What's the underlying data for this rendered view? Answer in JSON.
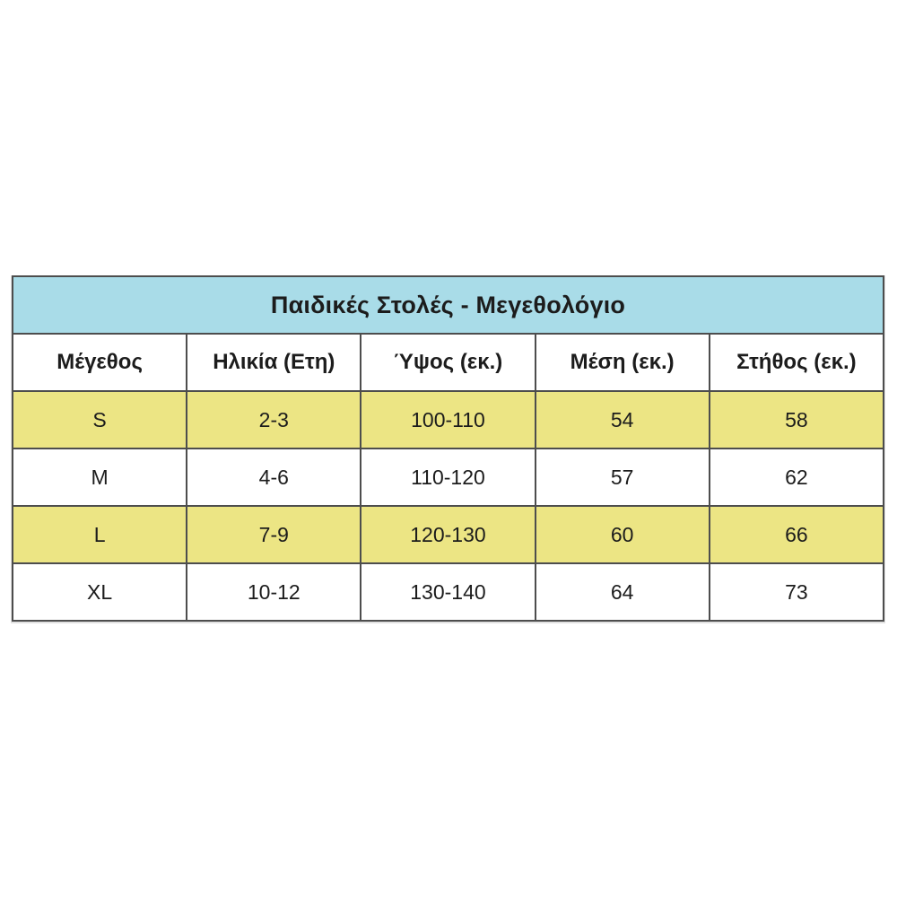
{
  "table": {
    "title": "Παιδικές Στολές - Μεγεθολόγιο",
    "columns": [
      "Μέγεθος",
      "Ηλικία (Ετη)",
      "Ύψος (εκ.)",
      "Μέση (εκ.)",
      "Στήθος (εκ.)"
    ],
    "rows": [
      {
        "size": "S",
        "age": "2-3",
        "height": "100-110",
        "waist": "54",
        "chest": "58"
      },
      {
        "size": "M",
        "age": "4-6",
        "height": "110-120",
        "waist": "57",
        "chest": "62"
      },
      {
        "size": "L",
        "age": "7-9",
        "height": "120-130",
        "waist": "60",
        "chest": "66"
      },
      {
        "size": "XL",
        "age": "10-12",
        "height": "130-140",
        "waist": "64",
        "chest": "73"
      }
    ],
    "colors": {
      "title_bg": "#a9dce8",
      "highlight_row_bg": "#ece584",
      "border": "#4d4d4d",
      "text": "#1c1c1c",
      "page_bg": "#ffffff"
    }
  }
}
